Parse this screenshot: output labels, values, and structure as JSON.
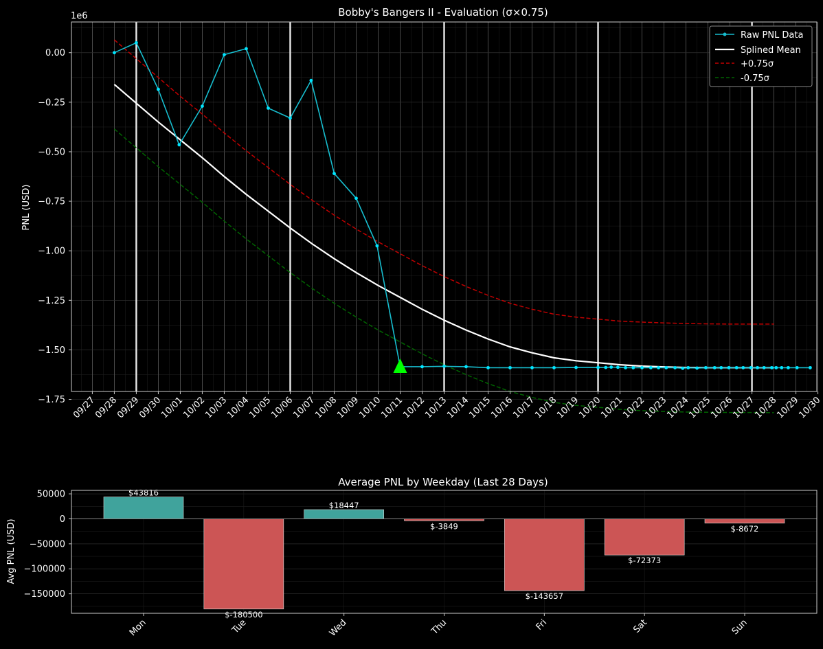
{
  "colors": {
    "background": "#000000",
    "raw": "#17becf",
    "raw_marker": "#00e5ff",
    "mean": "#ffffff",
    "upper": "#c00000",
    "lower": "#006400",
    "triangle": "#00ff00",
    "bar_pos": "#40a39c",
    "bar_neg": "#cc5555",
    "text": "#ffffff"
  },
  "chart_data": [
    {
      "type": "line",
      "title": "Bobby's Bangers II - Evaluation (σ×0.75)",
      "ylabel": "PNL (USD)",
      "xlabel": "",
      "y_offset_label": "1e6",
      "ylim": [
        -1.71,
        0.155
      ],
      "xlim": [
        -0.95,
        32.95
      ],
      "x_ticks": [
        "09/27",
        "09/28",
        "09/29",
        "09/30",
        "10/01",
        "10/02",
        "10/03",
        "10/04",
        "10/05",
        "10/06",
        "10/07",
        "10/08",
        "10/09",
        "10/10",
        "10/11",
        "10/12",
        "10/13",
        "10/14",
        "10/15",
        "10/16",
        "10/17",
        "10/18",
        "10/19",
        "10/20",
        "10/21",
        "10/22",
        "10/23",
        "10/24",
        "10/25",
        "10/26",
        "10/27",
        "10/28",
        "10/29",
        "10/30"
      ],
      "y_ticks": [
        "0.00",
        "−0.25",
        "−0.50",
        "−0.75",
        "−1.00",
        "−1.25",
        "−1.50",
        "−1.75"
      ],
      "y_tick_values": [
        0,
        -0.25,
        -0.5,
        -0.75,
        -1.0,
        -1.25,
        -1.5,
        -1.75
      ],
      "week_lines_x": [
        2,
        9,
        16,
        23,
        30
      ],
      "grid": true,
      "legend_position": "top-right",
      "legend": [
        "Raw PNL Data",
        "Splined Mean",
        "+0.75σ",
        "-0.75σ"
      ],
      "series": [
        {
          "name": "Raw PNL Data",
          "style": "line-markers",
          "x": [
            1,
            2,
            3,
            3.95,
            5,
            6,
            7,
            8,
            9,
            9.95,
            11,
            12,
            12.95,
            14,
            15,
            16,
            17,
            18,
            19,
            20,
            21,
            22,
            23,
            23.35,
            23.6,
            23.9,
            24.25,
            24.6,
            25,
            25.4,
            25.75,
            26.1,
            26.5,
            26.85,
            27.1,
            27.5,
            27.9,
            28.3,
            28.6,
            28.95,
            29.3,
            29.6,
            29.95,
            30.25,
            30.55,
            30.9,
            31.1,
            31.35,
            31.65,
            32.05,
            32.65
          ],
          "y": [
            0.0,
            0.05,
            -0.185,
            -0.465,
            -0.27,
            -0.01,
            0.02,
            -0.28,
            -0.33,
            -0.14,
            -0.61,
            -0.735,
            -0.975,
            -1.585,
            -1.585,
            -1.583,
            -1.585,
            -1.59,
            -1.59,
            -1.59,
            -1.59,
            -1.589,
            -1.589,
            -1.589,
            -1.587,
            -1.588,
            -1.59,
            -1.59,
            -1.59,
            -1.59,
            -1.59,
            -1.59,
            -1.59,
            -1.593,
            -1.59,
            -1.592,
            -1.59,
            -1.59,
            -1.59,
            -1.59,
            -1.59,
            -1.59,
            -1.59,
            -1.59,
            -1.59,
            -1.59,
            -1.59,
            -1.59,
            -1.59,
            -1.59,
            -1.59
          ]
        },
        {
          "name": "Splined Mean",
          "style": "line",
          "x": [
            1,
            2,
            3,
            4,
            5,
            6,
            7,
            8,
            9,
            10,
            11,
            12,
            13,
            14,
            15,
            16,
            17,
            18,
            19,
            20,
            21,
            22,
            23,
            24,
            25,
            26,
            27,
            28,
            29,
            30,
            31
          ],
          "y": [
            -0.16,
            -0.255,
            -0.35,
            -0.44,
            -0.53,
            -0.625,
            -0.715,
            -0.8,
            -0.885,
            -0.965,
            -1.04,
            -1.11,
            -1.175,
            -1.235,
            -1.295,
            -1.35,
            -1.4,
            -1.445,
            -1.485,
            -1.515,
            -1.54,
            -1.555,
            -1.565,
            -1.575,
            -1.582,
            -1.586,
            -1.589,
            -1.59,
            -1.59,
            -1.59,
            -1.59
          ]
        },
        {
          "name": "+0.75σ",
          "style": "dashed",
          "x": [
            1,
            2,
            3,
            4,
            5,
            6,
            7,
            8,
            9,
            10,
            11,
            12,
            13,
            14,
            15,
            16,
            17,
            18,
            19,
            20,
            21,
            22,
            23,
            24,
            25,
            26,
            27,
            28,
            29,
            30,
            31
          ],
          "y": [
            0.065,
            -0.03,
            -0.125,
            -0.22,
            -0.31,
            -0.405,
            -0.495,
            -0.58,
            -0.665,
            -0.745,
            -0.82,
            -0.89,
            -0.955,
            -1.015,
            -1.075,
            -1.13,
            -1.18,
            -1.225,
            -1.265,
            -1.295,
            -1.32,
            -1.335,
            -1.345,
            -1.355,
            -1.36,
            -1.364,
            -1.367,
            -1.369,
            -1.37,
            -1.37,
            -1.37
          ]
        },
        {
          "name": "-0.75σ",
          "style": "dashed",
          "x": [
            1,
            2,
            3,
            4,
            5,
            6,
            7,
            8,
            9,
            10,
            11,
            12,
            13,
            14,
            15,
            16,
            17,
            18,
            19,
            20,
            21,
            22,
            23,
            24,
            25,
            26,
            27,
            28,
            29,
            30,
            31
          ],
          "y": [
            -0.385,
            -0.48,
            -0.575,
            -0.665,
            -0.755,
            -0.85,
            -0.94,
            -1.025,
            -1.11,
            -1.19,
            -1.265,
            -1.335,
            -1.4,
            -1.46,
            -1.52,
            -1.575,
            -1.625,
            -1.67,
            -1.71,
            -1.74,
            -1.765,
            -1.78,
            -1.79,
            -1.8,
            -1.807,
            -1.811,
            -1.814,
            -1.815,
            -1.816,
            -1.816,
            -1.817
          ]
        }
      ],
      "marker_triangle": {
        "x": 14,
        "y": -1.585
      }
    },
    {
      "type": "bar",
      "title": "Average PNL by Weekday (Last 28 Days)",
      "ylabel": "Avg PNL (USD)",
      "xlabel": "",
      "categories": [
        "Mon",
        "Tue",
        "Wed",
        "Thu",
        "Fri",
        "Sat",
        "Sun"
      ],
      "values": [
        43816,
        -180500,
        18447,
        -3849,
        -143657,
        -72373,
        -8672
      ],
      "data_labels": [
        "$43816",
        "$-180500",
        "$18447",
        "$-3849",
        "$-143657",
        "$-72373",
        "$-8672"
      ],
      "ylim": [
        -189000,
        57000
      ],
      "y_ticks": [
        "50000",
        "0",
        "−50000",
        "−100000",
        "−150000"
      ],
      "y_tick_values": [
        50000,
        0,
        -50000,
        -100000,
        -150000
      ],
      "grid": true
    }
  ]
}
